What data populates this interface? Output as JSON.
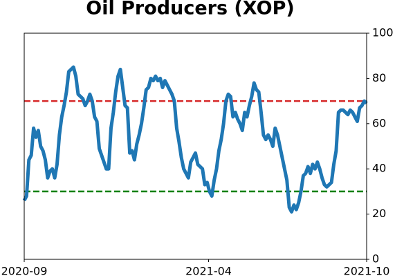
{
  "chart_data": {
    "type": "line",
    "title": "Oil Producers (XOP)",
    "xlim": [
      "2020-09",
      "2021-10"
    ],
    "xticks": [
      "2020-09",
      "2021-04",
      "2021-10"
    ],
    "ylim": [
      0,
      100
    ],
    "yticks": [
      0,
      20,
      40,
      60,
      80,
      100
    ],
    "y_axis_side": "right",
    "color": "#1f77b4",
    "values": [
      26,
      28,
      44,
      46,
      58,
      54,
      57,
      50,
      48,
      44,
      36,
      39,
      40,
      36,
      42,
      55,
      63,
      68,
      74,
      83,
      84,
      85,
      81,
      73,
      72,
      71,
      68,
      70,
      73,
      70,
      63,
      61,
      49,
      46,
      43,
      40,
      40,
      58,
      65,
      74,
      81,
      84,
      76,
      68,
      67,
      47,
      48,
      44,
      51,
      55,
      60,
      67,
      75,
      76,
      80,
      79,
      81,
      79,
      80,
      76,
      79,
      77,
      75,
      73,
      70,
      58,
      52,
      45,
      40,
      38,
      36,
      43,
      45,
      47,
      42,
      41,
      40,
      33,
      34,
      30,
      28,
      35,
      40,
      48,
      53,
      60,
      70,
      73,
      72,
      63,
      65,
      62,
      60,
      57,
      65,
      63,
      68,
      72,
      78,
      75,
      74,
      65,
      55,
      53,
      55,
      53,
      50,
      58,
      55,
      50,
      45,
      40,
      35,
      23,
      21,
      24,
      22,
      25,
      30,
      37,
      38,
      41,
      38,
      42,
      40,
      43,
      40,
      36,
      33,
      32,
      33,
      34,
      42,
      48,
      65,
      66,
      66,
      65,
      64,
      66,
      65,
      63,
      61,
      67,
      68,
      70,
      69
    ],
    "reference_lines": [
      {
        "value": 70,
        "color": "#d62728"
      },
      {
        "value": 30,
        "color": "#008000"
      }
    ]
  }
}
